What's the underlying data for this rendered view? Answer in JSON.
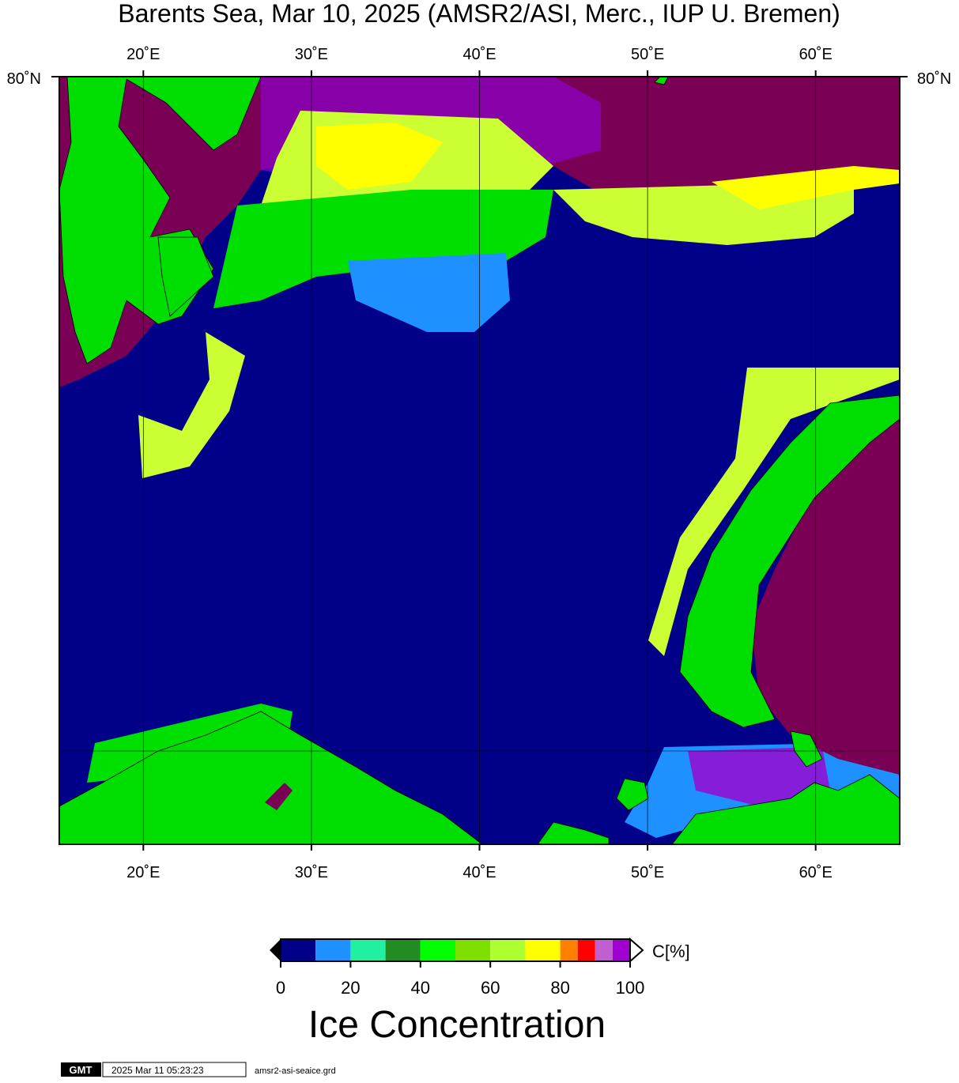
{
  "title": "Barents Sea, Mar 10, 2025 (AMSR2/ASI, Merc., IUP U. Bremen)",
  "map": {
    "lonlim": [
      15,
      65
    ],
    "lonticks": [
      {
        "value": 20,
        "label": "20˚E"
      },
      {
        "value": 30,
        "label": "30˚E"
      },
      {
        "value": 40,
        "label": "40˚E"
      },
      {
        "value": 50,
        "label": "50˚E"
      },
      {
        "value": 60,
        "label": "60˚E"
      }
    ],
    "lat_label": "80˚N"
  },
  "colorbar": {
    "bins": [
      0,
      10,
      20,
      30,
      40,
      50,
      60,
      70,
      80,
      85,
      90,
      95,
      100
    ],
    "colors": [
      "#000088",
      "#1e90ff",
      "#20f0a0",
      "#228b22",
      "#00ff00",
      "#7fe000",
      "#adff2f",
      "#ffff00",
      "#ff8000",
      "#ff0000",
      "#c060d0",
      "#a000d0"
    ],
    "xlim": [
      0,
      100
    ],
    "ticks": [
      0,
      20,
      40,
      60,
      80,
      100
    ],
    "unit": "C[%]",
    "label": "Ice Concentration"
  },
  "footer": {
    "logo": "GMT",
    "timestamp": "2025 Mar 11 05:23:23",
    "file": "amsr2-asi-seaice.grd"
  }
}
